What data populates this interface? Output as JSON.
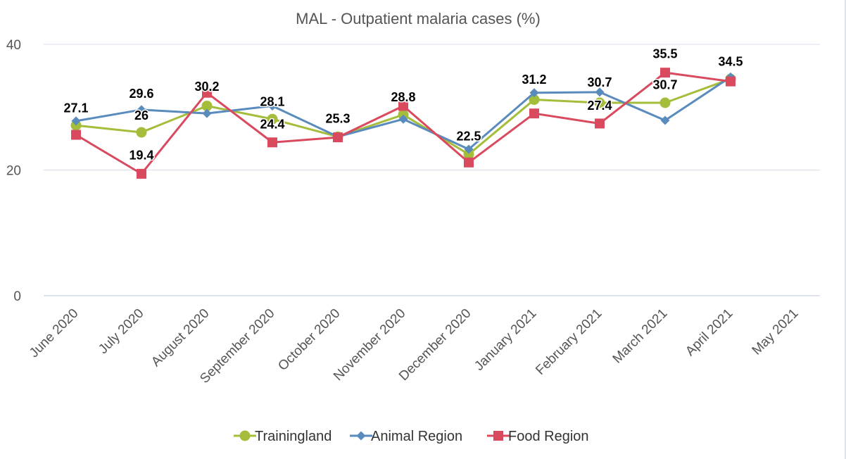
{
  "chart_data": {
    "type": "line",
    "title": "MAL - Outpatient malaria cases (%)",
    "xlabel": "",
    "ylabel": "",
    "ylim": [
      0,
      40
    ],
    "yticks": [
      0,
      20,
      40
    ],
    "grid": true,
    "legend_position": "bottom",
    "categories": [
      "June 2020",
      "July 2020",
      "August 2020",
      "September 2020",
      "October 2020",
      "November 2020",
      "December 2020",
      "January 2021",
      "February 2021",
      "March 2021",
      "April 2021",
      "May 2021"
    ],
    "series": [
      {
        "name": "Trainingland",
        "color": "#a4bd3a",
        "marker": "circle",
        "values": [
          27.1,
          26,
          30.2,
          28.1,
          25.3,
          28.8,
          22.5,
          31.2,
          30.7,
          30.7,
          34.5,
          null
        ]
      },
      {
        "name": "Animal Region",
        "color": "#5a8bbd",
        "marker": "diamond",
        "values": [
          27.8,
          29.6,
          29,
          30.2,
          25.3,
          28.1,
          23.3,
          32.3,
          32.4,
          27.9,
          34.8,
          null
        ]
      },
      {
        "name": "Food Region",
        "color": "#d94a5f",
        "marker": "square",
        "values": [
          25.6,
          19.4,
          32.3,
          24.4,
          25.2,
          30.2,
          21.2,
          29,
          27.4,
          35.5,
          34.1,
          null
        ]
      }
    ],
    "data_labels": [
      {
        "category": "June 2020",
        "text": "27.1",
        "y": 29.2
      },
      {
        "category": "July 2020",
        "text": "29.6",
        "y": 31.5
      },
      {
        "category": "July 2020",
        "text": "26",
        "y": 28.0
      },
      {
        "category": "July 2020",
        "text": "19.4",
        "y": 21.7
      },
      {
        "category": "August 2020",
        "text": "30.2",
        "y": 32.6
      },
      {
        "category": "September 2020",
        "text": "28.1",
        "y": 30.2
      },
      {
        "category": "September 2020",
        "text": "24.4",
        "y": 26.6
      },
      {
        "category": "October 2020",
        "text": "25.3",
        "y": 27.5
      },
      {
        "category": "November 2020",
        "text": "28.8",
        "y": 30.9
      },
      {
        "category": "December 2020",
        "text": "22.5",
        "y": 24.7
      },
      {
        "category": "January 2021",
        "text": "31.2",
        "y": 33.7
      },
      {
        "category": "February 2021",
        "text": "30.7",
        "y": 33.3
      },
      {
        "category": "February 2021",
        "text": "27.4",
        "y": 29.6
      },
      {
        "category": "March 2021",
        "text": "35.5",
        "y": 37.8
      },
      {
        "category": "March 2021",
        "text": "30.7",
        "y": 32.9
      },
      {
        "category": "April 2021",
        "text": "34.5",
        "y": 36.6
      }
    ]
  }
}
